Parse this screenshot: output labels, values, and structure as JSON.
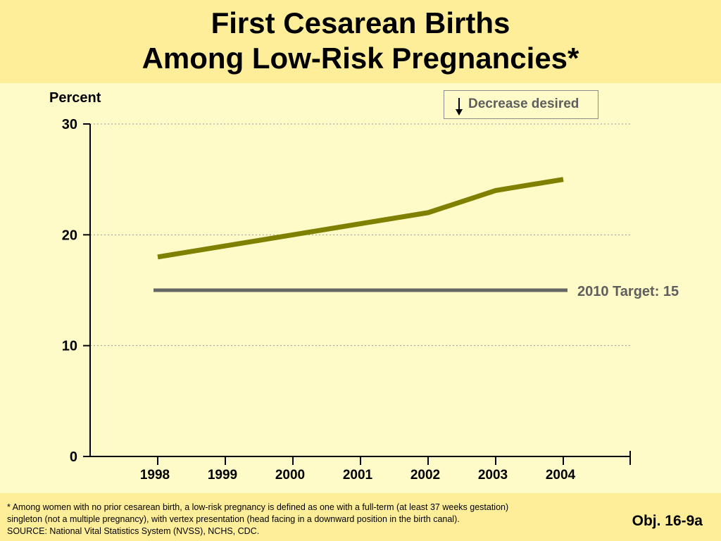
{
  "title_line1": "First Cesarean Births",
  "title_line2": "Among Low-Risk Pregnancies*",
  "legend": {
    "label": "Decrease desired",
    "icon": "down-arrow-icon"
  },
  "footnote": {
    "line1": "* Among women with no prior cesarean birth, a low-risk pregnancy is defined as one with a full-term (at least 37 weeks gestation)",
    "line2": "singleton (not a multiple pregnancy), with vertex presentation (head facing in a downward position in the birth canal).",
    "line3": "SOURCE:  National Vital Statistics System (NVSS), NCHS, CDC."
  },
  "objective": "Obj. 16-9a",
  "colors": {
    "series": "#808000",
    "target": "#666666",
    "grid": "#999999",
    "background": "#FFFBC8",
    "band": "#FFEE99"
  },
  "chart_data": {
    "type": "line",
    "ylabel": "Percent",
    "ylim": [
      0,
      30
    ],
    "yticks": [
      0,
      10,
      20,
      30
    ],
    "x": [
      "1998",
      "1999",
      "2000",
      "2001",
      "2002",
      "2003",
      "2004"
    ],
    "series": [
      {
        "values": [
          18,
          19,
          20,
          21,
          22,
          24,
          25
        ]
      }
    ],
    "target": {
      "label": "2010 Target: 15",
      "value": 15
    },
    "grid": "horizontal-dotted"
  }
}
